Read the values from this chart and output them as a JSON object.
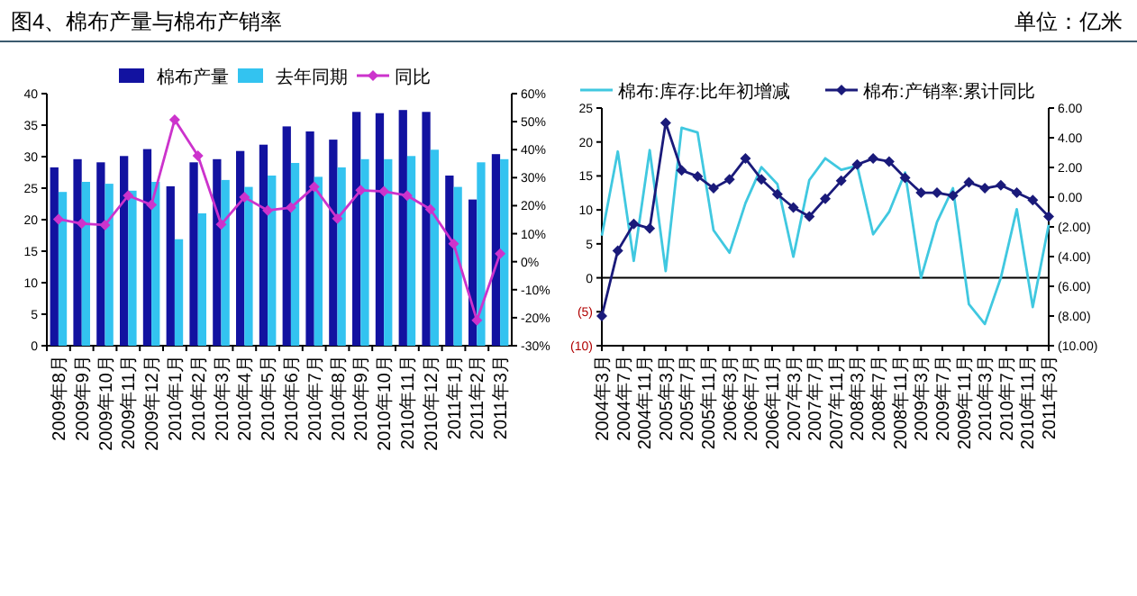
{
  "chart_data": [
    {
      "type": "bar",
      "title": "图4、棉布产量与棉布产销率",
      "annotations": [
        "单位：亿米"
      ],
      "categories": [
        "2009年8月",
        "2009年9月",
        "2009年10月",
        "2009年11月",
        "2009年12月",
        "2010年1月",
        "2010年2月",
        "2010年3月",
        "2010年4月",
        "2010年5月",
        "2010年6月",
        "2010年7月",
        "2010年8月",
        "2010年9月",
        "2010年10月",
        "2010年11月",
        "2010年12月",
        "2011年1月",
        "2011年2月",
        "2011年3月"
      ],
      "series": [
        {
          "name": "棉布产量",
          "color": "#1212a0",
          "values": [
            28.3,
            29.6,
            29.1,
            30.1,
            31.2,
            25.3,
            29.1,
            29.6,
            30.9,
            31.9,
            34.8,
            34.0,
            32.7,
            37.1,
            36.9,
            37.4,
            37.1,
            27.0,
            23.2,
            30.4
          ]
        },
        {
          "name": "去年同期",
          "color": "#33c3f0",
          "values": [
            24.4,
            26.0,
            25.7,
            24.6,
            26.0,
            16.9,
            21.0,
            26.3,
            25.2,
            27.0,
            29.0,
            26.8,
            28.3,
            29.6,
            29.6,
            30.1,
            31.1,
            25.2,
            29.1,
            29.6
          ]
        },
        {
          "name": "同比",
          "type": "line",
          "axis": "y2",
          "color": "#cc33cc",
          "marker": "diamond",
          "values": [
            15.2,
            13.6,
            13.1,
            23.6,
            20.3,
            50.7,
            37.8,
            13.3,
            23.0,
            18.3,
            19.3,
            26.7,
            15.4,
            25.5,
            25.1,
            23.6,
            18.7,
            6.4,
            -20.9,
            2.9
          ]
        }
      ],
      "ylim": [
        0,
        40
      ],
      "yticks": [
        0,
        5,
        10,
        15,
        20,
        25,
        30,
        35,
        40
      ],
      "y2lim": [
        -30,
        60
      ],
      "y2ticks": [
        {
          "value": -30,
          "label": "-30%"
        },
        {
          "value": -20,
          "label": "-20%"
        },
        {
          "value": -10,
          "label": "-10%"
        },
        {
          "value": 0,
          "label": "0%"
        },
        {
          "value": 10,
          "label": "10%"
        },
        {
          "value": 20,
          "label": "20%"
        },
        {
          "value": 30,
          "label": "30%"
        },
        {
          "value": 40,
          "label": "40%"
        },
        {
          "value": 50,
          "label": "50%"
        },
        {
          "value": 60,
          "label": "60%"
        }
      ],
      "legend": "top"
    },
    {
      "type": "line",
      "x": [
        "2004-03",
        "2004-06",
        "2004-09",
        "2004-12",
        "2005-03",
        "2005-06",
        "2005-09",
        "2005-12",
        "2006-03",
        "2006-06",
        "2006-09",
        "2006-12",
        "2007-03",
        "2007-06",
        "2007-09",
        "2007-12",
        "2008-03",
        "2008-06",
        "2008-09",
        "2008-12",
        "2009-03",
        "2009-06",
        "2009-09",
        "2009-12",
        "2010-03",
        "2010-06",
        "2010-09",
        "2010-12",
        "2011-03"
      ],
      "series": [
        {
          "name": "棉布:库存:比年初增减",
          "color": "#40c8e0",
          "marker": "none",
          "values": [
            6.2,
            18.6,
            2.5,
            18.8,
            1.0,
            22.1,
            21.4,
            7.0,
            3.7,
            11.0,
            16.3,
            13.8,
            3.1,
            14.4,
            17.6,
            15.9,
            16.5,
            6.4,
            9.7,
            15.5,
            0,
            8.2,
            13.2,
            -3.9,
            -6.8,
            0,
            10.1,
            -4.3,
            7.8
          ]
        },
        {
          "name": "棉布:产销率:累计同比",
          "axis": "y2",
          "color": "#1a1a7a",
          "marker": "diamond",
          "values": [
            -8.0,
            -3.6,
            -1.8,
            -2.1,
            5.0,
            1.8,
            1.4,
            0.6,
            1.2,
            2.6,
            1.2,
            0.2,
            -0.7,
            -1.3,
            -0.1,
            1.1,
            2.2,
            2.6,
            2.4,
            1.3,
            0.3,
            0.3,
            0.1,
            1.0,
            0.6,
            0.8,
            0.3,
            -0.2,
            -1.3
          ]
        }
      ],
      "xlim": [
        "2004-03",
        "2011-03"
      ],
      "xticks": [
        {
          "value": "2004-03",
          "label": "2004年3月"
        },
        {
          "value": "2004-07",
          "label": "2004年7月"
        },
        {
          "value": "2004-11",
          "label": "2004年11月"
        },
        {
          "value": "2005-03",
          "label": "2005年3月"
        },
        {
          "value": "2005-07",
          "label": "2005年7月"
        },
        {
          "value": "2005-11",
          "label": "2005年11月"
        },
        {
          "value": "2006-03",
          "label": "2006年3月"
        },
        {
          "value": "2006-07",
          "label": "2006年7月"
        },
        {
          "value": "2006-11",
          "label": "2006年11月"
        },
        {
          "value": "2007-03",
          "label": "2007年3月"
        },
        {
          "value": "2007-07",
          "label": "2007年7月"
        },
        {
          "value": "2007-11",
          "label": "2007年11月"
        },
        {
          "value": "2008-03",
          "label": "2008年3月"
        },
        {
          "value": "2008-07",
          "label": "2008年7月"
        },
        {
          "value": "2008-11",
          "label": "2008年11月"
        },
        {
          "value": "2009-03",
          "label": "2009年3月"
        },
        {
          "value": "2009-07",
          "label": "2009年7月"
        },
        {
          "value": "2009-11",
          "label": "2009年11月"
        },
        {
          "value": "2010-03",
          "label": "2010年3月"
        },
        {
          "value": "2010-07",
          "label": "2010年7月"
        },
        {
          "value": "2010-11",
          "label": "2010年11月"
        },
        {
          "value": "2011-03",
          "label": "2011年3月"
        }
      ],
      "ylim": [
        -10,
        25
      ],
      "yticks": [
        {
          "value": -10,
          "label": "(10)"
        },
        {
          "value": -5,
          "label": "(5)"
        },
        0,
        5,
        10,
        15,
        20,
        25
      ],
      "y2lim": [
        -10,
        6
      ],
      "y2ticks": [
        {
          "value": -10,
          "label": "(10.00)"
        },
        {
          "value": -8,
          "label": "(8.00)"
        },
        {
          "value": -6,
          "label": "(6.00)"
        },
        {
          "value": -4,
          "label": "(4.00)"
        },
        {
          "value": -2,
          "label": "(2.00)"
        },
        {
          "value": 0,
          "label": "0.00"
        },
        {
          "value": 2,
          "label": "2.00"
        },
        {
          "value": 4,
          "label": "4.00"
        },
        {
          "value": 6,
          "label": "6.00"
        }
      ],
      "ref_lines": [
        {
          "axis": "y",
          "value": 0,
          "color": "#000000"
        }
      ],
      "legend": "top"
    }
  ]
}
